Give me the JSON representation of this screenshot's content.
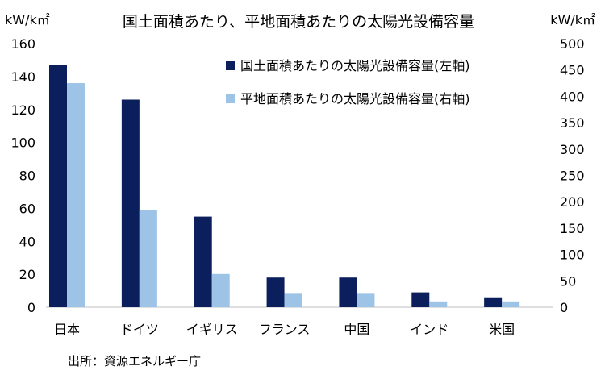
{
  "chart_data": {
    "type": "bar",
    "title": "国土面積あたり、平地面積あたりの太陽光設備容量",
    "y_left_unit": "kW/k㎡",
    "y_right_unit": "kW/k㎡",
    "y_left_range": [
      0,
      160
    ],
    "y_left_ticks": [
      "0",
      "20",
      "40",
      "60",
      "80",
      "100",
      "120",
      "140",
      "160"
    ],
    "y_right_range": [
      0,
      500
    ],
    "y_right_ticks": [
      "0",
      "50",
      "100",
      "150",
      "200",
      "250",
      "300",
      "350",
      "400",
      "450",
      "500"
    ],
    "grid": false,
    "legend_position": "top-right",
    "categories": [
      "日本",
      "ドイツ",
      "イギリス",
      "フランス",
      "中国",
      "インド",
      "米国"
    ],
    "series": [
      {
        "name": "国土面積あたりの太陽光設備容量(左軸)",
        "axis": "left",
        "color": "#0b1f5c",
        "values": [
          147,
          126,
          55,
          18,
          18,
          9,
          6
        ]
      },
      {
        "name": "平地面積あたりの太陽光設備容量(右軸)",
        "axis": "right",
        "color": "#9dc3e6",
        "values": [
          425,
          185,
          63,
          27,
          27,
          11,
          11
        ]
      }
    ],
    "source": "出所：資源エネルギー庁"
  }
}
